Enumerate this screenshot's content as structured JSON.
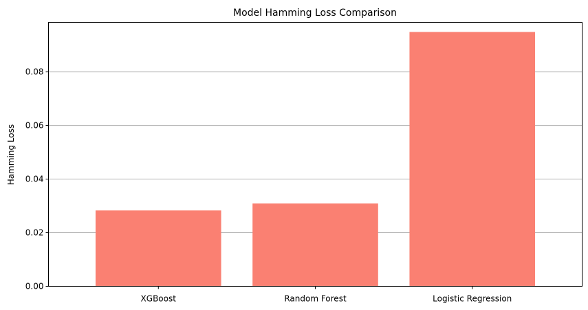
{
  "chart_data": {
    "type": "bar",
    "title": "Model Hamming Loss Comparison",
    "xlabel": "",
    "ylabel": "Hamming Loss",
    "categories": [
      "XGBoost",
      "Random Forest",
      "Logistic Regression"
    ],
    "values": [
      0.0283,
      0.0309,
      0.0949
    ],
    "ylim": [
      0,
      0.0985
    ],
    "yticks": [
      0.0,
      0.02,
      0.04,
      0.06,
      0.08
    ],
    "ytick_labels": [
      "0.00",
      "0.02",
      "0.04",
      "0.06",
      "0.08"
    ],
    "grid": "y",
    "legend": "none",
    "bar_color": "#fa8072"
  }
}
